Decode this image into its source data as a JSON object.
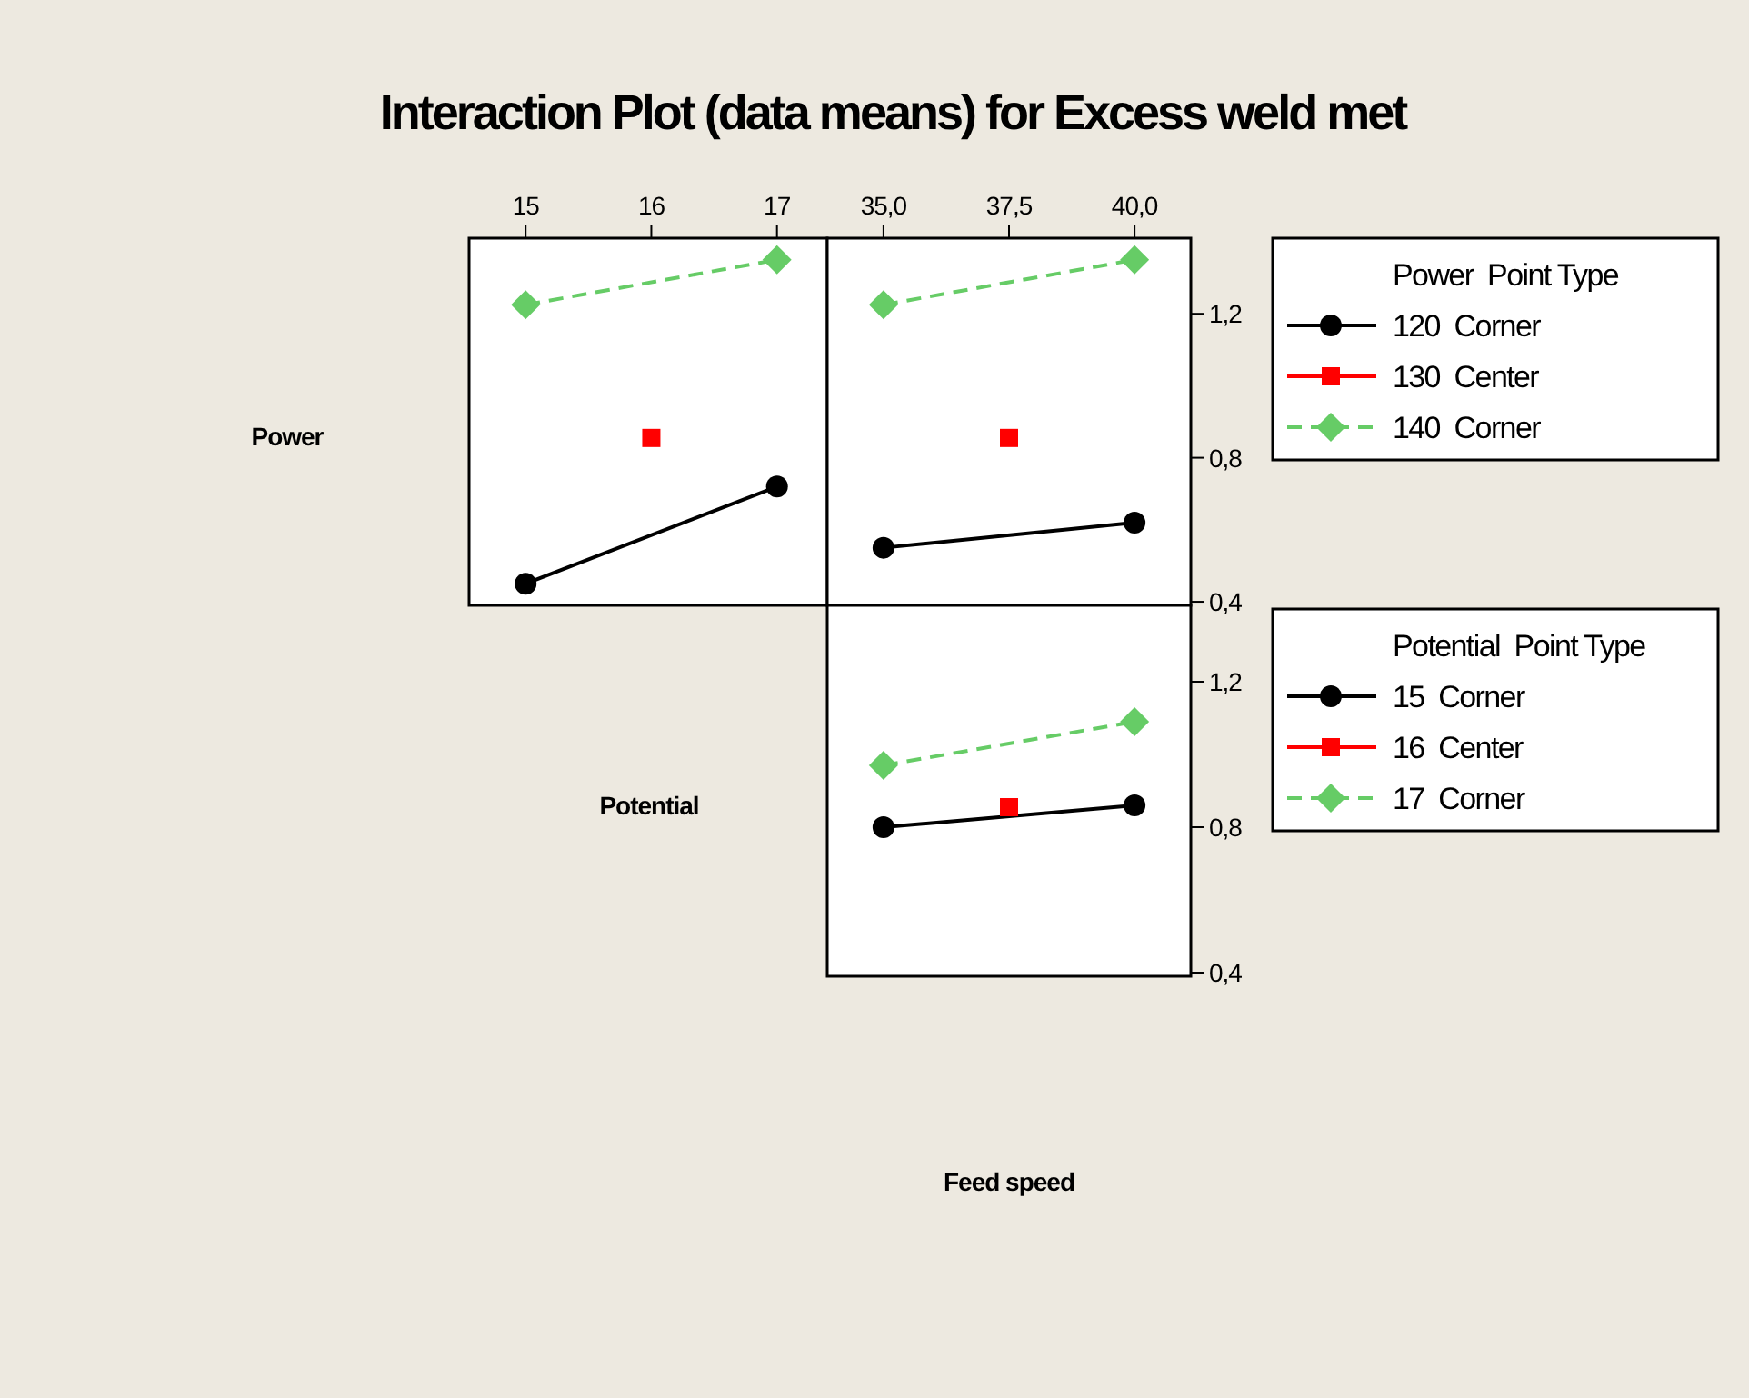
{
  "chart_data": [
    {
      "type": "line",
      "title": "Interaction Plot (data means) for Excess weld met",
      "ylabel": "Power",
      "xlim": [
        14.55,
        17.4
      ],
      "xticks": [
        15,
        16,
        17
      ],
      "ylim": [
        0.39,
        1.41
      ],
      "tick_labels": "x",
      "series": [
        {
          "color": "#000000",
          "marker": "circle",
          "line_style": "solid",
          "x": [
            15,
            17
          ],
          "values": [
            0.45,
            0.72
          ]
        },
        {
          "color": "#ff0000",
          "marker": "square",
          "x": [
            16
          ],
          "values": [
            0.855
          ]
        },
        {
          "color": "#66cc66",
          "marker": "diamond",
          "line_style": "dashed",
          "x": [
            15,
            17
          ],
          "values": [
            1.225,
            1.35
          ]
        }
      ]
    },
    {
      "type": "line",
      "xlim": [
        33.88,
        41.12
      ],
      "xticks": [
        {
          "value": 35,
          "label": "35,0"
        },
        {
          "value": 37.5,
          "label": "37,5"
        },
        {
          "value": 40,
          "label": "40,0"
        }
      ],
      "ylim": [
        0.39,
        1.41
      ],
      "yticks": [
        {
          "value": 0.4,
          "label": "0,4"
        },
        {
          "value": 0.8,
          "label": "0,8"
        },
        {
          "value": 1.2,
          "label": "1,2"
        }
      ],
      "legend": "right",
      "legend_title": "Power  Point Type",
      "series": [
        {
          "name": "120  Corner",
          "color": "#000000",
          "marker": "circle",
          "line_style": "solid",
          "x": [
            35,
            40
          ],
          "values": [
            0.55,
            0.62
          ]
        },
        {
          "name": "130  Center",
          "color": "#ff0000",
          "marker": "square",
          "line_style": "solid",
          "x": [
            37.5
          ],
          "values": [
            0.855
          ]
        },
        {
          "name": "140  Corner",
          "color": "#66cc66",
          "marker": "diamond",
          "line_style": "dashed",
          "x": [
            35,
            40
          ],
          "values": [
            1.225,
            1.35
          ]
        }
      ]
    },
    {
      "type": "line",
      "ylabel": "Potential",
      "xlabel": "Feed speed",
      "xlim": [
        33.88,
        41.12
      ],
      "ylim": [
        0.39,
        1.41
      ],
      "yticks": [
        {
          "value": 0.4,
          "label": "0,4"
        },
        {
          "value": 0.8,
          "label": "0,8"
        },
        {
          "value": 1.2,
          "label": "1,2"
        }
      ],
      "tick_labels": "y",
      "legend": "right",
      "legend_title": "Potential  Point Type",
      "series": [
        {
          "name": "15  Corner",
          "color": "#000000",
          "marker": "circle",
          "line_style": "solid",
          "x": [
            35,
            40
          ],
          "values": [
            0.8,
            0.86
          ]
        },
        {
          "name": "16  Center",
          "color": "#ff0000",
          "marker": "square",
          "line_style": "solid",
          "x": [
            37.5
          ],
          "values": [
            0.855
          ]
        },
        {
          "name": "17  Corner",
          "color": "#66cc66",
          "marker": "diamond",
          "line_style": "dashed",
          "x": [
            35,
            40
          ],
          "values": [
            0.97,
            1.09
          ]
        }
      ]
    }
  ]
}
